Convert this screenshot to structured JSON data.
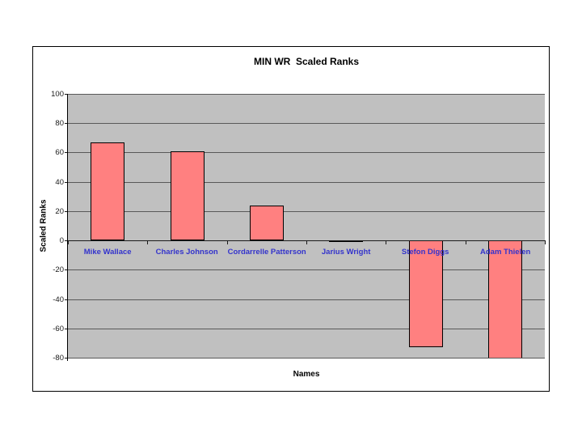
{
  "page": {
    "background": "#FFFFFF",
    "frame_border_color": "#000000"
  },
  "chart_data": {
    "type": "bar",
    "title": "MIN WR  Scaled Ranks",
    "xlabel": "Names",
    "ylabel": "Scaled Ranks",
    "categories": [
      "Mike Wallace",
      "Charles Johnson",
      "Cordarrelle Patterson",
      "Jarius Wright",
      "Stefon Diggs",
      "Adam Thielen"
    ],
    "values": [
      67,
      61,
      24,
      -1,
      -73,
      -81
    ],
    "ylim": [
      -80,
      100
    ],
    "ytick_step": 20,
    "grid": true,
    "legend": "none",
    "plot_bg": "#C0C0C0",
    "bar_fill": "#FF8080",
    "bar_border": "#000000",
    "gridline_color": "#595959",
    "axis_color": "#1a1a1a",
    "category_label_color": "#3333CC",
    "tick_label_color": "#1a1a1a"
  }
}
